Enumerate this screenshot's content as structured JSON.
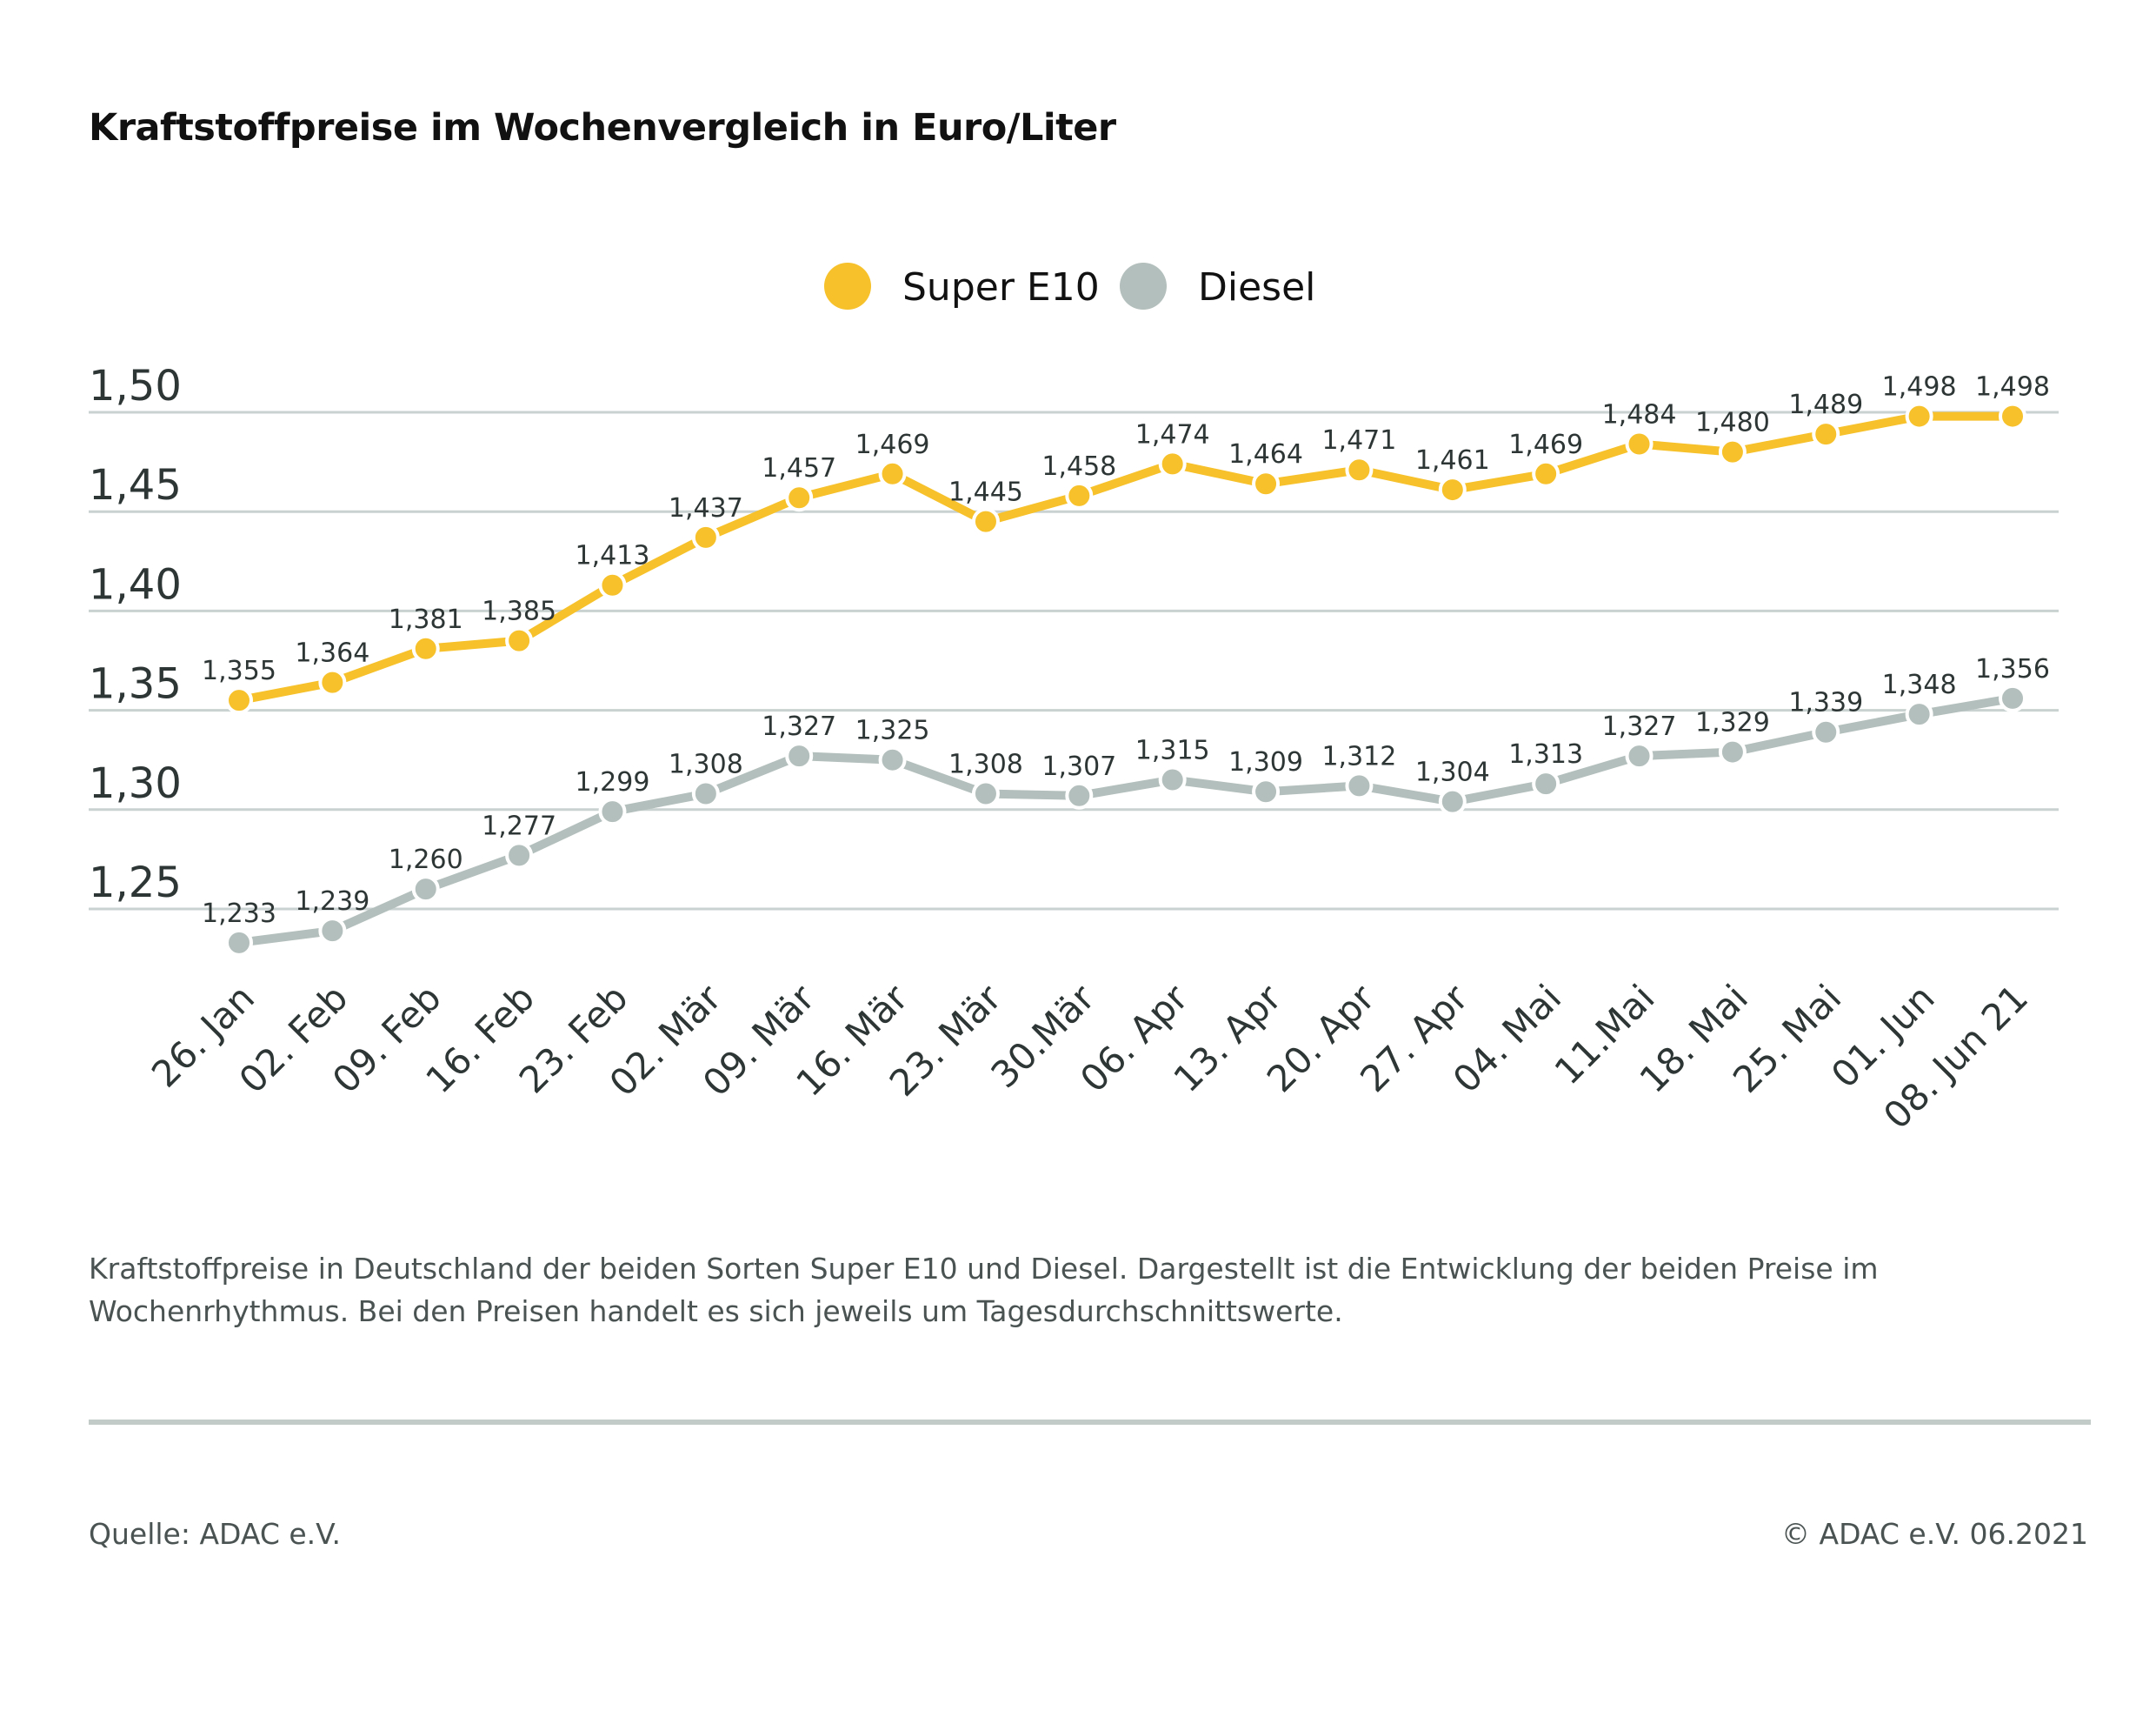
{
  "title": "Kraftstoffpreise im Wochenvergleich in Euro/Liter",
  "caption": "Kraftstoffpreise in Deutschland der beiden Sorten Super E10 und Diesel. Dargestellt ist die Entwicklung der beiden Preise im Wochenrhythmus. Bei den Preisen handelt es sich jeweils um Tagesdurchschnittswerte.",
  "source": "Quelle: ADAC e.V.",
  "copyright": "© ADAC e.V. 06.2021",
  "chart_data": {
    "type": "line",
    "title": "Kraftstoffpreise im Wochenvergleich in Euro/Liter",
    "xlabel": "",
    "ylabel": "",
    "ylim": [
      1.2,
      1.52
    ],
    "yticks": [
      1.25,
      1.3,
      1.35,
      1.4,
      1.45,
      1.5
    ],
    "ytick_labels": [
      "1,25",
      "1,30",
      "1,35",
      "1,40",
      "1,45",
      "1,50"
    ],
    "grid": true,
    "legend_position": "top-center",
    "categories": [
      "26. Jan",
      "02. Feb",
      "09. Feb",
      "16. Feb",
      "23. Feb",
      "02. Mär",
      "09. Mär",
      "16. Mär",
      "23. Mär",
      "30.Mär",
      "06. Apr",
      "13. Apr",
      "20. Apr",
      "27. Apr",
      "04. Mai",
      "11.Mai",
      "18. Mai",
      "25. Mai",
      "01. Jun",
      "08. Jun 21"
    ],
    "series": [
      {
        "name": "Super E10",
        "color": "#f6c12a",
        "values": [
          1.355,
          1.364,
          1.381,
          1.385,
          1.413,
          1.437,
          1.457,
          1.469,
          1.445,
          1.458,
          1.474,
          1.464,
          1.471,
          1.461,
          1.469,
          1.484,
          1.48,
          1.489,
          1.498,
          1.498
        ]
      },
      {
        "name": "Diesel",
        "color": "#b3bfbc",
        "values": [
          1.233,
          1.239,
          1.26,
          1.277,
          1.299,
          1.308,
          1.327,
          1.325,
          1.308,
          1.307,
          1.315,
          1.309,
          1.312,
          1.304,
          1.313,
          1.327,
          1.329,
          1.339,
          1.348,
          1.356
        ]
      }
    ]
  }
}
